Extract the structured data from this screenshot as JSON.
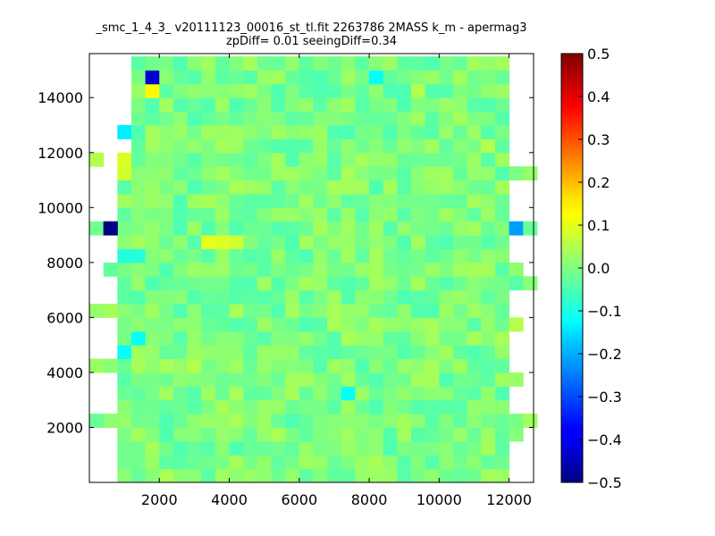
{
  "chart_data": {
    "type": "heatmap",
    "title": "_smc_1_4_3_ v20111123_00016_st_tl.fit 2263786 2MASS k_m - apermag3",
    "subtitle": "zpDiff= 0.01 seeingDiff=0.34",
    "xlabel": "",
    "ylabel": "",
    "x_ticks": [
      "2000",
      "4000",
      "6000",
      "8000",
      "10000",
      "12000"
    ],
    "y_ticks": [
      "2000",
      "4000",
      "6000",
      "8000",
      "10000",
      "12000",
      "14000"
    ],
    "colorbar_ticks": [
      "0.5",
      "0.4",
      "0.3",
      "0.2",
      "0.1",
      "0.0",
      "−0.1",
      "−0.2",
      "−0.3",
      "−0.4",
      "−0.5"
    ],
    "xlim": [
      0,
      12700
    ],
    "ylim": [
      0,
      15600
    ],
    "clim": [
      -0.5,
      0.5
    ],
    "colormap": "jet",
    "grid": false,
    "cell_size": [
      400,
      500
    ],
    "notes_on_values": "irregular heatmap; values visually estimated",
    "extremes": [
      {
        "x": 1800,
        "y": 14750,
        "value": -0.42
      },
      {
        "x": 1800,
        "y": 14250,
        "value": 0.13
      },
      {
        "x": 600,
        "y": 9250,
        "value": -0.5
      },
      {
        "x": 12200,
        "y": 9250,
        "value": -0.22
      },
      {
        "x": 3400,
        "y": 8750,
        "value": 0.1
      },
      {
        "x": 3800,
        "y": 8750,
        "value": 0.09
      },
      {
        "x": 4200,
        "y": 8750,
        "value": 0.08
      },
      {
        "x": 1000,
        "y": 11750,
        "value": 0.09
      },
      {
        "x": 200,
        "y": 11750,
        "value": 0.05
      },
      {
        "x": 1000,
        "y": 11250,
        "value": 0.08
      },
      {
        "x": 1000,
        "y": 12750,
        "value": -0.14
      },
      {
        "x": 4800,
        "y": 14750,
        "value": -0.14
      },
      {
        "x": 5600,
        "y": 11250,
        "value": -0.13
      },
      {
        "x": 8200,
        "y": 14750,
        "value": -0.12
      },
      {
        "x": 1400,
        "y": 5250,
        "value": -0.12
      },
      {
        "x": 7400,
        "y": 3250,
        "value": -0.12
      },
      {
        "x": 1000,
        "y": 4750,
        "value": -0.12
      },
      {
        "x": 1000,
        "y": 8250,
        "value": -0.09
      },
      {
        "x": 1400,
        "y": 8250,
        "value": -0.09
      },
      {
        "x": 9400,
        "y": 14250,
        "value": 0.05
      },
      {
        "x": 11400,
        "y": 12250,
        "value": 0.05
      },
      {
        "x": 11800,
        "y": 5250,
        "value": 0.04
      },
      {
        "x": 12200,
        "y": 5750,
        "value": 0.05
      },
      {
        "x": 3000,
        "y": 4250,
        "value": 0.05
      },
      {
        "x": 8200,
        "y": 750,
        "value": 0.04
      }
    ]
  }
}
